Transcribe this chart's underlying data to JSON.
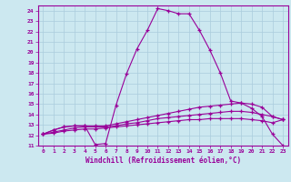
{
  "xlabel": "Windchill (Refroidissement éolien,°C)",
  "bg_color": "#cce8f0",
  "grid_color": "#aaccdd",
  "line_color": "#990099",
  "ylim": [
    11,
    24.5
  ],
  "xlim": [
    -0.5,
    23.5
  ],
  "yticks": [
    11,
    12,
    13,
    14,
    15,
    16,
    17,
    18,
    19,
    20,
    21,
    22,
    23,
    24
  ],
  "xticks": [
    0,
    1,
    2,
    3,
    4,
    5,
    6,
    7,
    8,
    9,
    10,
    11,
    12,
    13,
    14,
    15,
    16,
    17,
    18,
    19,
    20,
    21,
    22,
    23
  ],
  "line1_x": [
    0,
    1,
    2,
    3,
    4,
    5,
    6,
    7,
    8,
    9,
    10,
    11,
    12,
    13,
    14,
    15,
    16,
    17,
    18,
    19,
    20,
    21,
    22,
    23
  ],
  "line1_y": [
    12.1,
    12.5,
    12.8,
    12.9,
    12.9,
    11.1,
    11.2,
    14.9,
    17.9,
    20.3,
    22.1,
    24.2,
    24.0,
    23.7,
    23.7,
    22.1,
    20.2,
    18.0,
    15.3,
    15.1,
    14.6,
    13.8,
    12.1,
    11.0
  ],
  "line2_x": [
    0,
    1,
    2,
    3,
    4,
    5,
    6,
    7,
    8,
    9,
    10,
    11,
    12,
    13,
    14,
    15,
    16,
    17,
    18,
    19,
    20,
    21,
    22,
    23
  ],
  "line2_y": [
    12.1,
    12.5,
    12.8,
    12.9,
    12.9,
    12.9,
    12.9,
    13.1,
    13.3,
    13.5,
    13.7,
    13.9,
    14.1,
    14.3,
    14.5,
    14.7,
    14.8,
    14.9,
    15.0,
    15.1,
    15.0,
    14.7,
    13.8,
    13.5
  ],
  "line3_x": [
    0,
    1,
    2,
    3,
    4,
    5,
    6,
    7,
    8,
    9,
    10,
    11,
    12,
    13,
    14,
    15,
    16,
    17,
    18,
    19,
    20,
    21,
    22,
    23
  ],
  "line3_y": [
    12.1,
    12.3,
    12.5,
    12.7,
    12.8,
    12.8,
    12.8,
    12.9,
    13.1,
    13.2,
    13.4,
    13.6,
    13.7,
    13.8,
    13.9,
    14.0,
    14.1,
    14.2,
    14.3,
    14.3,
    14.2,
    14.0,
    13.8,
    13.5
  ],
  "line4_x": [
    0,
    1,
    2,
    3,
    4,
    5,
    6,
    7,
    8,
    9,
    10,
    11,
    12,
    13,
    14,
    15,
    16,
    17,
    18,
    19,
    20,
    21,
    22,
    23
  ],
  "line4_y": [
    12.1,
    12.2,
    12.4,
    12.5,
    12.6,
    12.6,
    12.7,
    12.8,
    12.9,
    13.0,
    13.1,
    13.2,
    13.3,
    13.4,
    13.5,
    13.5,
    13.6,
    13.6,
    13.6,
    13.6,
    13.5,
    13.4,
    13.2,
    13.5
  ]
}
